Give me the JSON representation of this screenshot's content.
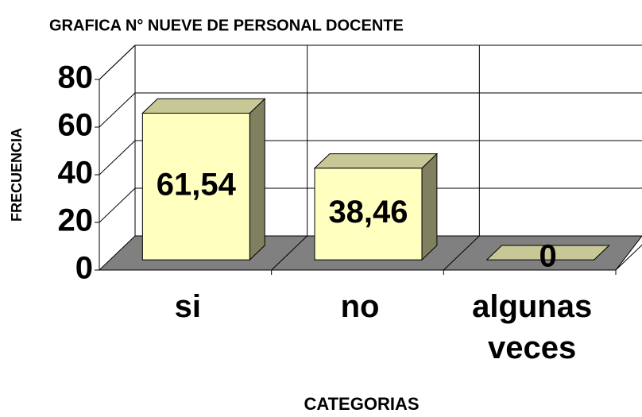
{
  "chart_data": {
    "type": "bar3d",
    "title": "GRAFICA   N°  NUEVE  DE PERSONAL DOCENTE",
    "ylabel": "FRECUENCIA",
    "xlabel": "CATEGORIAS",
    "categories": [
      "si",
      "no",
      "algunas veces"
    ],
    "values": [
      61.54,
      38.46,
      0
    ],
    "value_labels": [
      "61,54",
      "38,46",
      "0"
    ],
    "color": "#ffffc0",
    "ylim": [
      0,
      80
    ],
    "yticks": [
      0,
      20,
      40,
      60,
      80
    ],
    "grid": true
  }
}
